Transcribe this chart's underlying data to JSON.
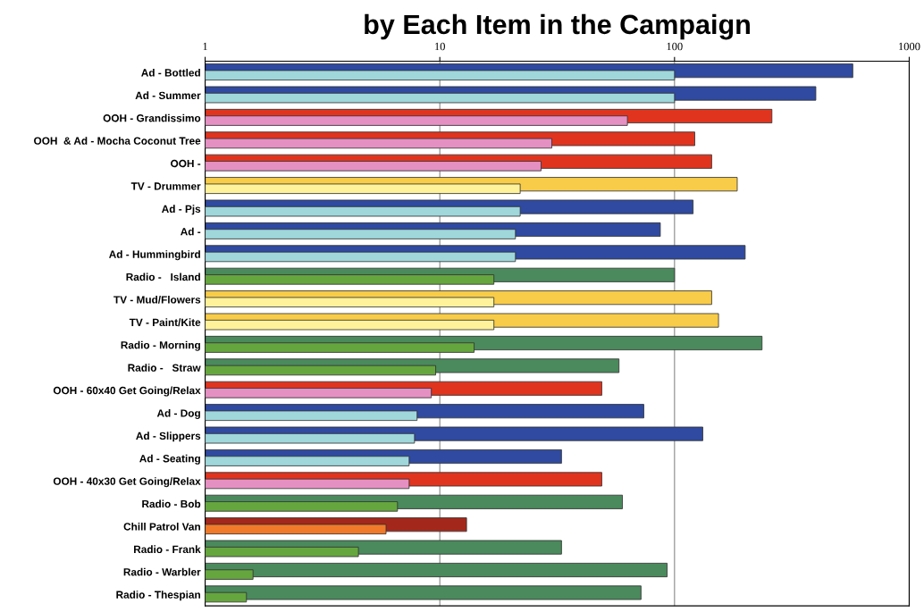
{
  "chart_data": {
    "type": "bar",
    "orientation": "horizontal",
    "title": "by Each Item in the Campaign",
    "categories": [
      "Ad - Bottled",
      "Ad - Summer",
      "OOH - Grandissimo",
      "OOH  & Ad - Mocha Coconut Tree",
      "OOH -",
      "TV - Drummer",
      "Ad - Pjs",
      "Ad -",
      "Ad - Hummingbird",
      "Radio -   Island",
      "TV - Mud/Flowers",
      "TV - Paint/Kite",
      "Radio - Morning",
      "Radio -   Straw",
      "OOH - 60x40 Get Going/Relax",
      "Ad - Dog",
      "Ad - Slippers",
      "Ad - Seating",
      "OOH - 40x30 Get Going/Relax",
      "Radio - Bob",
      "Chill Patrol Van",
      "Radio - Frank",
      "Radio - Warbler",
      "Radio - Thespian"
    ],
    "series": [
      {
        "values": [
          575,
          400,
          260,
          122,
          144,
          185,
          120,
          87,
          200,
          100,
          144,
          154,
          236,
          58,
          49,
          74,
          132,
          33,
          49,
          60,
          13,
          33,
          93,
          72
        ],
        "colors": [
          "#2f4aa0",
          "#2f4aa0",
          "#e0341f",
          "#e0341f",
          "#e0341f",
          "#f8cc48",
          "#2f4aa0",
          "#2f4aa0",
          "#2f4aa0",
          "#4a8a5c",
          "#f8cc48",
          "#f8cc48",
          "#4a8a5c",
          "#4a8a5c",
          "#e0341f",
          "#2f4aa0",
          "#2f4aa0",
          "#2f4aa0",
          "#e0341f",
          "#4a8a5c",
          "#a3281b",
          "#4a8a5c",
          "#4a8a5c",
          "#4a8a5c"
        ]
      },
      {
        "values": [
          100,
          100,
          63,
          30,
          27,
          22,
          22,
          21,
          21,
          17,
          17,
          17,
          14,
          9.6,
          9.2,
          8,
          7.8,
          7.4,
          7.4,
          6.6,
          5.9,
          4.5,
          1.6,
          1.5
        ],
        "colors": [
          "#9fd7db",
          "#9fd7db",
          "#e590c3",
          "#e590c3",
          "#e590c3",
          "#fff29a",
          "#9fd7db",
          "#9fd7db",
          "#9fd7db",
          "#66a63e",
          "#fff29a",
          "#fff29a",
          "#66a63e",
          "#66a63e",
          "#e590c3",
          "#9fd7db",
          "#9fd7db",
          "#9fd7db",
          "#e590c3",
          "#66a63e",
          "#f07a2a",
          "#66a63e",
          "#66a63e",
          "#66a63e"
        ]
      }
    ],
    "log": "x",
    "xlim": [
      1,
      1000
    ],
    "xticks": [
      1,
      10,
      100,
      1000
    ],
    "grid": "x"
  }
}
